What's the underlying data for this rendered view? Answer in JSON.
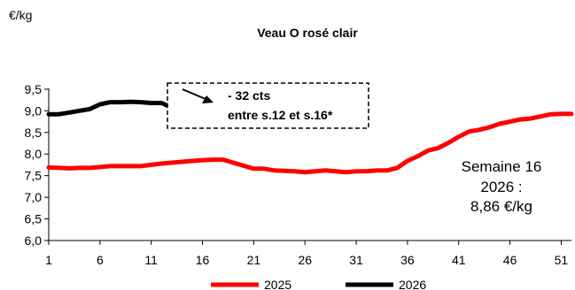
{
  "chart_data": {
    "type": "line",
    "title": "Veau O rosé clair",
    "ylabel": "€/kg",
    "xlabel": "",
    "x_ticks": [
      1,
      6,
      11,
      16,
      21,
      26,
      31,
      36,
      41,
      46,
      51
    ],
    "y_ticks": [
      "6,0",
      "6,5",
      "7,0",
      "7,5",
      "8,0",
      "8,5",
      "9,0",
      "9,5"
    ],
    "ylim": [
      6.0,
      9.6
    ],
    "xlim": [
      1,
      52
    ],
    "grid": false,
    "legend_position": "bottom",
    "series": [
      {
        "name": "2025",
        "color": "#ff0000",
        "x": [
          1,
          2,
          3,
          4,
          5,
          6,
          7,
          8,
          9,
          10,
          11,
          12,
          13,
          14,
          15,
          16,
          17,
          18,
          19,
          20,
          21,
          22,
          23,
          24,
          25,
          26,
          27,
          28,
          29,
          30,
          31,
          32,
          33,
          34,
          35,
          36,
          37,
          38,
          39,
          40,
          41,
          42,
          43,
          44,
          45,
          46,
          47,
          48,
          49,
          50,
          51,
          52
        ],
        "values": [
          7.69,
          7.68,
          7.67,
          7.68,
          7.68,
          7.7,
          7.72,
          7.72,
          7.72,
          7.72,
          7.75,
          7.78,
          7.8,
          7.82,
          7.84,
          7.86,
          7.87,
          7.87,
          7.8,
          7.73,
          7.66,
          7.66,
          7.62,
          7.61,
          7.6,
          7.58,
          7.6,
          7.62,
          7.6,
          7.58,
          7.6,
          7.6,
          7.62,
          7.62,
          7.68,
          7.84,
          7.95,
          8.08,
          8.14,
          8.26,
          8.4,
          8.52,
          8.56,
          8.62,
          8.7,
          8.75,
          8.8,
          8.82,
          8.87,
          8.92,
          8.93,
          8.93
        ]
      },
      {
        "name": "2026",
        "color": "#000000",
        "x": [
          1,
          2,
          3,
          4,
          5,
          6,
          7,
          8,
          9,
          10,
          11,
          12,
          13,
          14,
          15,
          16
        ],
        "values": [
          8.92,
          8.92,
          8.96,
          9.0,
          9.04,
          9.15,
          9.2,
          9.2,
          9.21,
          9.2,
          9.18,
          9.18,
          9.08,
          9.08,
          8.96,
          8.86
        ]
      }
    ],
    "annotation": {
      "line1": "- 32 cts",
      "line2": "entre s.12 et s.16*"
    },
    "note": {
      "line1": "Semaine 16",
      "line2": "2026 :",
      "line3": "8,86 €/kg"
    }
  }
}
